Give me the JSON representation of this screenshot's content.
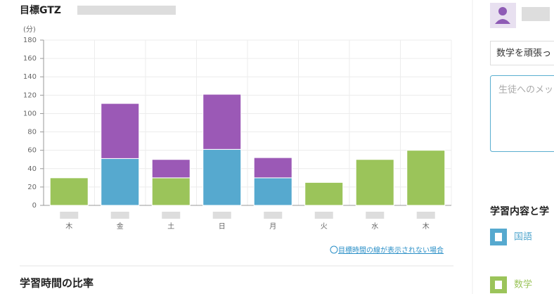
{
  "header": {
    "title": "目標GTZ"
  },
  "chart_data": {
    "type": "bar",
    "stacked": true,
    "y_label": "(分)",
    "categories": [
      "木",
      "金",
      "土",
      "日",
      "月",
      "火",
      "水",
      "木"
    ],
    "series": [
      {
        "color": "#9bc45a",
        "values": [
          30,
          null,
          30,
          null,
          null,
          25,
          50,
          60
        ]
      },
      {
        "color": "#56a9cf",
        "values": [
          null,
          51,
          null,
          61,
          30,
          null,
          null,
          null
        ]
      },
      {
        "color": "#9b59b6",
        "values": [
          null,
          60,
          20,
          60,
          22,
          null,
          null,
          null
        ]
      }
    ],
    "ylim": [
      0,
      180
    ],
    "yticks": [
      0,
      20,
      40,
      60,
      80,
      100,
      120,
      140,
      160,
      180
    ],
    "grid": true
  },
  "help_link": "目標時間の線が表示されない場合",
  "section_title": "学習時間の比率",
  "sidebar": {
    "message": "数学を頑張っ",
    "input_placeholder": "生徒へのメッ",
    "section_title": "学習内容と学",
    "subjects": [
      {
        "label": "国語",
        "color": "#56a9cf"
      },
      {
        "label": "数学",
        "color": "#9bc45a"
      }
    ]
  }
}
